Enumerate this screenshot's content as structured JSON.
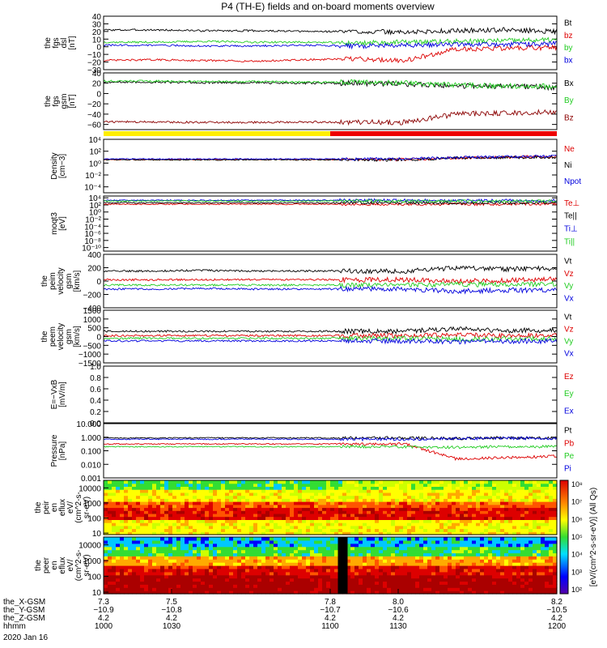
{
  "title": "P4 (TH-E) fields and on-board moments overview",
  "chart_data": {
    "type": "line",
    "x_range": [
      1000,
      1200
    ],
    "panels": [
      {
        "id": "fgs-dsl",
        "ylabel": [
          "the",
          "fgs",
          "dsl",
          "[nT]"
        ],
        "ylim": [
          -30,
          40
        ],
        "yticks": [
          -30,
          -20,
          -10,
          0,
          10,
          20,
          30,
          40
        ],
        "ytick_labels": [
          "−30",
          "−20",
          "−10",
          "0",
          "10",
          "20",
          "30",
          "40"
        ],
        "series": [
          {
            "name": "Bt",
            "color": "#000000",
            "values": [
              22,
              22,
              21,
              21,
              20,
              20,
              19,
              21,
              22,
              20
            ]
          },
          {
            "name": "bz",
            "color": "#dd0000",
            "values": [
              -18,
              -17,
              -18,
              -19,
              -17,
              -16,
              -18,
              -3,
              -2,
              -1
            ]
          },
          {
            "name": "by",
            "color": "#22cc22",
            "values": [
              6,
              6,
              7,
              6,
              6,
              5,
              6,
              7,
              8,
              9
            ]
          },
          {
            "name": "bx",
            "color": "#0000dd",
            "values": [
              2,
              2,
              1,
              1,
              2,
              1,
              2,
              3,
              3,
              4
            ]
          }
        ]
      },
      {
        "id": "fgs-gsm",
        "ylabel": [
          "the",
          "fgs",
          "gsm",
          "[nT]"
        ],
        "ylim": [
          -70,
          40
        ],
        "yticks": [
          -60,
          -40,
          -20,
          0,
          20,
          40
        ],
        "ytick_labels": [
          "−60",
          "−40",
          "−20",
          "0",
          "20",
          "40"
        ],
        "series": [
          {
            "name": "Bx",
            "color": "#000000",
            "values": [
              22,
              22,
              21,
              21,
              20,
              20,
              18,
              15,
              14,
              12
            ]
          },
          {
            "name": "By",
            "color": "#22cc22",
            "values": [
              24,
              24,
              23,
              23,
              22,
              22,
              20,
              16,
              15,
              14
            ]
          },
          {
            "name": "Bz",
            "color": "#8b0000",
            "values": [
              -55,
              -55,
              -56,
              -56,
              -55,
              -56,
              -56,
              -40,
              -38,
              -36
            ]
          }
        ]
      },
      {
        "id": "density",
        "ylabel": [
          "Density",
          "[cm−3]"
        ],
        "ylim_exp": [
          -5,
          4
        ],
        "log": true,
        "ytick_labels": [
          "10⁻⁴",
          "10⁻²",
          "10⁰",
          "10²",
          "10⁴"
        ],
        "series": [
          {
            "name": "Ne",
            "color": "#dd0000",
            "values": [
              0.6,
              0.6,
              0.6,
              0.6,
              0.6,
              0.6,
              0.6,
              0.9,
              1,
              1.1
            ]
          },
          {
            "name": "Ni",
            "color": "#000000",
            "values": [
              0.55,
              0.55,
              0.55,
              0.55,
              0.55,
              0.55,
              0.55,
              0.85,
              0.95,
              1
            ]
          },
          {
            "name": "Npot",
            "color": "#0000dd",
            "values": [
              0.7,
              0.7,
              0.7,
              0.7,
              0.7,
              0.7,
              0.7,
              0.95,
              1.05,
              1.15
            ]
          }
        ]
      },
      {
        "id": "temperature",
        "ylabel": [
          "moqt3",
          "[eV]"
        ],
        "ylim_exp": [
          -11,
          4.5
        ],
        "log": true,
        "ytick_labels": [
          "10⁻¹⁰",
          "10⁻⁸",
          "10⁻⁶",
          "10⁻⁴",
          "10⁻²",
          "10⁰",
          "10²",
          "10⁴"
        ],
        "series": [
          {
            "name": "Te⊥",
            "color": "#dd0000",
            "values": [
              2.2,
              2.2,
              2.2,
              2.2,
              2.2,
              2.2,
              2.2,
              2.2,
              2.25,
              2.3
            ]
          },
          {
            "name": "Te||",
            "color": "#000000",
            "values": [
              2.6,
              2.6,
              2.6,
              2.6,
              2.6,
              2.6,
              2.6,
              2.55,
              2.55,
              2.6
            ]
          },
          {
            "name": "Ti⊥",
            "color": "#0000dd",
            "values": [
              3.3,
              3.3,
              3.3,
              3.3,
              3.3,
              3.3,
              3.3,
              3.2,
              3.2,
              3.25
            ]
          },
          {
            "name": "Ti||",
            "color": "#22cc22",
            "values": [
              3.1,
              3.1,
              3.1,
              3.1,
              3.1,
              3.1,
              3.1,
              3.05,
              3.05,
              3.1
            ]
          }
        ]
      },
      {
        "id": "peim-velocity",
        "ylabel": [
          "the",
          "peim",
          "velocity",
          "gsm",
          "[km/s]"
        ],
        "ylim": [
          -400,
          400
        ],
        "yticks": [
          -400,
          -200,
          0,
          200,
          400
        ],
        "ytick_labels": [
          "−400",
          "−200",
          "0",
          "200",
          "400"
        ],
        "series": [
          {
            "name": "Vt",
            "color": "#000000",
            "values": [
              150,
              150,
              160,
              150,
              150,
              150,
              150,
              200,
              180,
              190
            ]
          },
          {
            "name": "Vz",
            "color": "#dd0000",
            "values": [
              20,
              20,
              20,
              20,
              20,
              20,
              20,
              0,
              10,
              30
            ]
          },
          {
            "name": "Vy",
            "color": "#22cc22",
            "values": [
              -60,
              -60,
              -60,
              -60,
              -60,
              -60,
              -60,
              -50,
              -50,
              -40
            ]
          },
          {
            "name": "Vx",
            "color": "#0000dd",
            "values": [
              -120,
              -120,
              -110,
              -120,
              -120,
              -120,
              -120,
              -150,
              -140,
              -130
            ]
          }
        ]
      },
      {
        "id": "peem-velocity",
        "ylabel": [
          "the",
          "peem",
          "velocity",
          "gsm",
          "[km/s]"
        ],
        "ylim": [
          -1500,
          1500
        ],
        "yticks": [
          -1500,
          -1000,
          -500,
          0,
          500,
          1000,
          1500
        ],
        "ytick_labels": [
          "−1500",
          "−1000",
          "−500",
          "0",
          "500",
          "1000",
          "1500"
        ],
        "series": [
          {
            "name": "Vt",
            "color": "#000000",
            "values": [
              300,
              300,
              300,
              300,
              300,
              300,
              300,
              450,
              350,
              350
            ]
          },
          {
            "name": "Vz",
            "color": "#dd0000",
            "values": [
              50,
              50,
              50,
              50,
              50,
              50,
              50,
              80,
              60,
              60
            ]
          },
          {
            "name": "Vy",
            "color": "#22cc22",
            "values": [
              -100,
              -100,
              -100,
              -100,
              -100,
              -100,
              -100,
              -150,
              -120,
              -120
            ]
          },
          {
            "name": "Vx",
            "color": "#0000dd",
            "values": [
              -250,
              -250,
              -250,
              -250,
              -250,
              -250,
              -250,
              -300,
              -260,
              -260
            ]
          }
        ]
      },
      {
        "id": "efield",
        "ylabel": [
          "E=−VxB",
          "[mV/m]"
        ],
        "ylim": [
          0,
          1
        ],
        "yticks": [
          0,
          0.2,
          0.4,
          0.6,
          0.8,
          1.0
        ],
        "ytick_labels": [
          "0.0",
          "0.2",
          "0.4",
          "0.6",
          "0.8",
          "1.0"
        ],
        "series": [
          {
            "name": "Ez",
            "color": "#dd0000",
            "values": []
          },
          {
            "name": "Ey",
            "color": "#22cc22",
            "values": []
          },
          {
            "name": "Ex",
            "color": "#0000dd",
            "values": []
          }
        ]
      },
      {
        "id": "pressure",
        "ylabel": [
          "Pressure",
          "[nPa]"
        ],
        "ylim_exp": [
          -3,
          1
        ],
        "log": true,
        "ytick_labels": [
          "0.001",
          "0.010",
          "0.100",
          "1.000",
          "10.000"
        ],
        "series": [
          {
            "name": "Pt",
            "color": "#000000",
            "values": [
              -0.05,
              -0.05,
              -0.05,
              -0.05,
              -0.05,
              -0.05,
              -0.05,
              -0.1,
              -0.05,
              -0.05
            ]
          },
          {
            "name": "Pb",
            "color": "#dd0000",
            "values": [
              -0.5,
              -0.5,
              -0.5,
              -0.5,
              -0.5,
              -0.5,
              -0.5,
              -1.6,
              -1.5,
              -1.4
            ]
          },
          {
            "name": "Pe",
            "color": "#22cc22",
            "values": [
              -0.7,
              -0.7,
              -0.7,
              -0.7,
              -0.7,
              -0.7,
              -0.7,
              -0.75,
              -0.7,
              -0.7
            ]
          },
          {
            "name": "Pi",
            "color": "#0000dd",
            "values": [
              -0.15,
              -0.15,
              -0.15,
              -0.15,
              -0.15,
              -0.15,
              -0.15,
              -0.1,
              -0.08,
              -0.08
            ]
          }
        ]
      },
      {
        "id": "peir-eflux",
        "type": "heatmap",
        "ylabel": [
          "the",
          "peir",
          "en",
          "eflux",
          "eV/",
          "(cm^2-s-",
          "sr-eV)"
        ],
        "ylim_exp": [
          0.9,
          4.5
        ],
        "ytick_labels": [
          "10",
          "100",
          "1000",
          "10000"
        ]
      },
      {
        "id": "peer-eflux",
        "type": "heatmap",
        "ylabel": [
          "the",
          "peer",
          "en",
          "eflux",
          "eV/",
          "(cm^2-s-",
          "sr-eV)"
        ],
        "ylim_exp": [
          0.9,
          4.5
        ],
        "ytick_labels": [
          "10",
          "100",
          "1000",
          "10000"
        ]
      }
    ],
    "colorbar": {
      "label": "[eV/(cm^2-s-sr-eV)] (All Qs)",
      "tick_labels": [
        "10²",
        "10³",
        "10⁴",
        "10⁵",
        "10⁶",
        "10⁷",
        "10⁸"
      ]
    },
    "mode_bar": {
      "segments": [
        {
          "color": "#ffee00",
          "until": 1100
        },
        {
          "color": "#ee0000",
          "until": 1200
        }
      ]
    },
    "x_axis": {
      "tick_values": [
        1000,
        1030,
        1100,
        1130,
        1200
      ],
      "row_labels": [
        "the_X-GSM",
        "the_Y-GSM",
        "the_Z-GSM",
        "hhmm"
      ],
      "rows": [
        [
          "7.3",
          "7.5",
          "7.8",
          "8.0",
          "8.2"
        ],
        [
          "−10.9",
          "−10.8",
          "−10.7",
          "−10.6",
          "−10.5"
        ],
        [
          "4.2",
          "4.2",
          "4.2",
          "4.2",
          "4.2"
        ],
        [
          "1000",
          "1030",
          "1100",
          "1130",
          "1200"
        ]
      ],
      "date": "2020 Jan 16"
    }
  }
}
